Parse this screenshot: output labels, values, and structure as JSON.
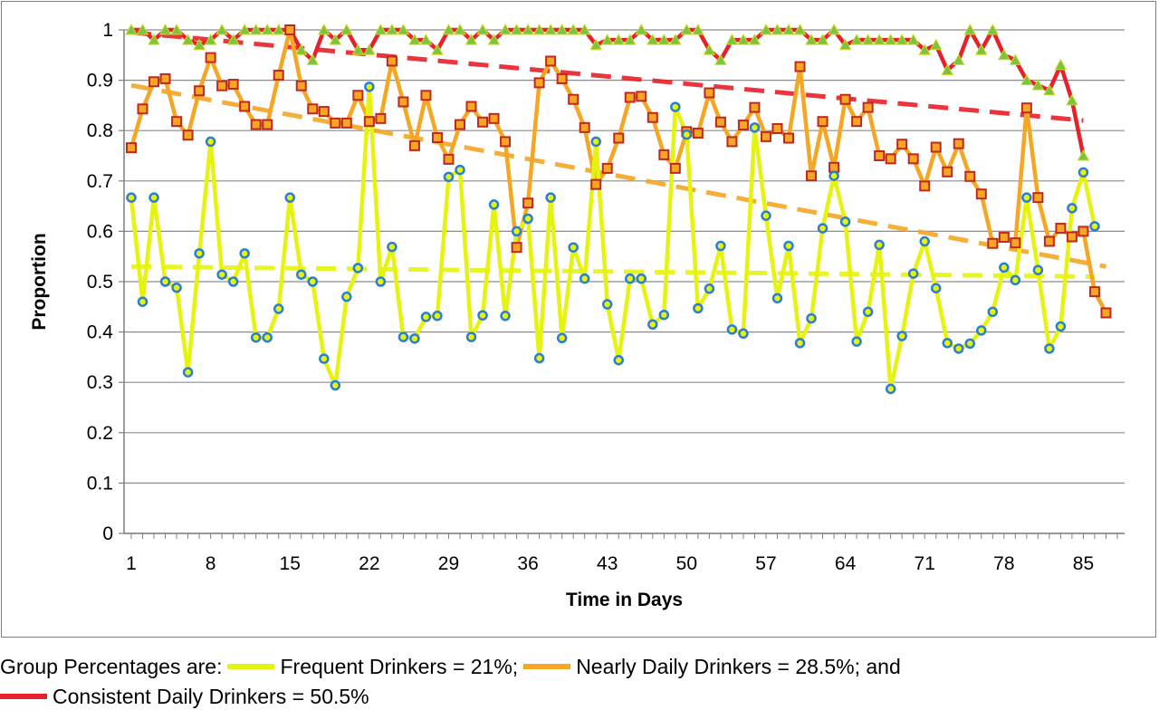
{
  "chart_data": {
    "type": "line",
    "xlabel": "Time in Days",
    "ylabel": "Proportion",
    "xlim": [
      1,
      88
    ],
    "ylim": [
      0,
      1
    ],
    "x_ticks": [
      1,
      8,
      15,
      22,
      29,
      36,
      43,
      50,
      57,
      64,
      71,
      78,
      85
    ],
    "y_ticks": [
      "0",
      "0.1",
      "0.2",
      "0.3",
      "0.4",
      "0.5",
      "0.6",
      "0.7",
      "0.8",
      "0.9",
      "1"
    ],
    "grid": true,
    "colors": {
      "frequent": "#e5f30f",
      "nearly": "#f5a623",
      "consistent": "#e8202a",
      "circle_edge": "#2a7fd4",
      "square_edge": "#c0281e",
      "triangle_fill": "#7dc242"
    },
    "series": [
      {
        "name": "Frequent Drinkers",
        "marker": "circle",
        "trend": [
          0.53,
          0.51
        ],
        "values": [
          0.667,
          0.46,
          0.667,
          0.5,
          0.488,
          0.32,
          0.556,
          0.778,
          0.514,
          0.5,
          0.556,
          0.389,
          0.389,
          0.446,
          0.667,
          0.514,
          0.5,
          0.347,
          0.294,
          0.47,
          0.527,
          0.887,
          0.5,
          0.569,
          0.39,
          0.387,
          0.43,
          0.432,
          0.708,
          0.722,
          0.39,
          0.433,
          0.653,
          0.432,
          0.6,
          0.625,
          0.348,
          0.667,
          0.388,
          0.568,
          0.506,
          0.778,
          0.455,
          0.344,
          0.506,
          0.506,
          0.415,
          0.434,
          0.847,
          0.792,
          0.447,
          0.486,
          0.571,
          0.405,
          0.397,
          0.806,
          0.631,
          0.467,
          0.571,
          0.378,
          0.427,
          0.606,
          0.71,
          0.619,
          0.381,
          0.44,
          0.573,
          0.287,
          0.392,
          0.516,
          0.58,
          0.487,
          0.378,
          0.367,
          0.377,
          0.403,
          0.44,
          0.528,
          0.503,
          0.667,
          0.523,
          0.367,
          0.411,
          0.646,
          0.717,
          0.61
        ]
      },
      {
        "name": "Nearly Daily Drinkers",
        "marker": "square",
        "trend": [
          0.89,
          0.53
        ],
        "values": [
          0.766,
          0.843,
          0.897,
          0.903,
          0.818,
          0.791,
          0.879,
          0.945,
          0.889,
          0.892,
          0.848,
          0.812,
          0.812,
          0.91,
          1.0,
          0.889,
          0.843,
          0.838,
          0.815,
          0.815,
          0.87,
          0.818,
          0.824,
          0.938,
          0.857,
          0.77,
          0.87,
          0.786,
          0.743,
          0.812,
          0.848,
          0.817,
          0.824,
          0.778,
          0.568,
          0.656,
          0.895,
          0.938,
          0.903,
          0.862,
          0.806,
          0.693,
          0.725,
          0.785,
          0.866,
          0.868,
          0.826,
          0.752,
          0.725,
          0.798,
          0.795,
          0.875,
          0.817,
          0.778,
          0.811,
          0.846,
          0.788,
          0.804,
          0.785,
          0.927,
          0.71,
          0.818,
          0.727,
          0.862,
          0.818,
          0.846,
          0.75,
          0.744,
          0.773,
          0.744,
          0.69,
          0.767,
          0.718,
          0.774,
          0.709,
          0.674,
          0.576,
          0.588,
          0.577,
          0.845,
          0.667,
          0.58,
          0.606,
          0.589,
          0.6,
          0.48,
          0.438
        ]
      },
      {
        "name": "Consistent Daily Drinkers",
        "marker": "triangle",
        "trend": [
          0.995,
          0.82
        ],
        "values": [
          1.0,
          1.0,
          0.98,
          1.0,
          1.0,
          0.98,
          0.97,
          0.98,
          1.0,
          0.98,
          1.0,
          1.0,
          1.0,
          1.0,
          1.0,
          0.96,
          0.94,
          1.0,
          0.98,
          1.0,
          0.96,
          0.96,
          1.0,
          1.0,
          1.0,
          0.98,
          0.98,
          0.96,
          1.0,
          1.0,
          0.98,
          1.0,
          0.98,
          1.0,
          1.0,
          1.0,
          1.0,
          1.0,
          1.0,
          1.0,
          1.0,
          0.97,
          0.98,
          0.98,
          0.98,
          1.0,
          0.98,
          0.98,
          0.98,
          1.0,
          1.0,
          0.96,
          0.94,
          0.98,
          0.98,
          0.98,
          1.0,
          1.0,
          1.0,
          1.0,
          0.98,
          0.98,
          1.0,
          0.97,
          0.98,
          0.98,
          0.98,
          0.98,
          0.98,
          0.98,
          0.96,
          0.97,
          0.92,
          0.94,
          1.0,
          0.96,
          1.0,
          0.95,
          0.94,
          0.9,
          0.89,
          0.88,
          0.93,
          0.86,
          0.75
        ]
      }
    ]
  },
  "legend": {
    "intro": "Group Percentages are:",
    "frequent": "Frequent Drinkers = 21%;",
    "nearly": "Nearly Daily Drinkers = 28.5%; and",
    "consistent": "Consistent Daily Drinkers = 50.5%"
  }
}
